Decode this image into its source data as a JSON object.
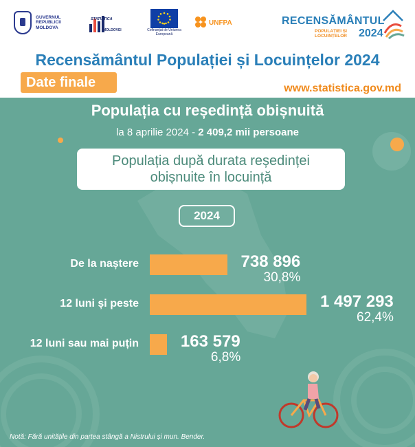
{
  "header": {
    "gov_logo_text": "GUVERNUL REPUBLICII MOLDOVA",
    "stat_logo_top": "STATISTICA",
    "stat_logo_bottom": "MOLDOVEI",
    "eu_caption": "Cofinanțat de Uniunea Europeană",
    "unfpa_text": "UNFPA",
    "census_logo_word": "RECENSĂMÂNTUL",
    "census_logo_sub": "POPULAȚIEI ȘI LOCUINȚELOR",
    "census_logo_year": "2024",
    "title": "Recensământul Populației și Locuințelor 2024",
    "badge": "Date finale",
    "website": "www.statistica.gov.md"
  },
  "panel": {
    "heading": "Populația cu reședință obișnuită",
    "subtitle_prefix": "la 8 aprilie 2024 - ",
    "subtitle_bold": "2 409,2 mii persoane",
    "box_line1": "Populația după durata reședinței",
    "box_line2": "obișnuite în locuință",
    "note": "Notă: Fără unitățile din partea stângă a Nistrului și mun. Bender."
  },
  "colors": {
    "panel_bg": "#66a797",
    "bar": "#f7a94b",
    "title_blue": "#2a7fb8",
    "accent_orange": "#f08a1c"
  },
  "chart_data": {
    "type": "bar",
    "orientation": "horizontal",
    "title": "Populația după durata reședinței obișnuite în locuință",
    "year": "2024",
    "categories": [
      "De la naștere",
      "12 luni și peste",
      "12 luni sau mai puțin"
    ],
    "values": [
      738896,
      1497293,
      163579
    ],
    "value_labels": [
      "738 896",
      "1 497 293",
      "163 579"
    ],
    "percent_labels": [
      "30,8%",
      "62,4%",
      "6,8%"
    ],
    "percents": [
      30.8,
      62.4,
      6.8
    ],
    "xlim": [
      0,
      1497293
    ]
  }
}
